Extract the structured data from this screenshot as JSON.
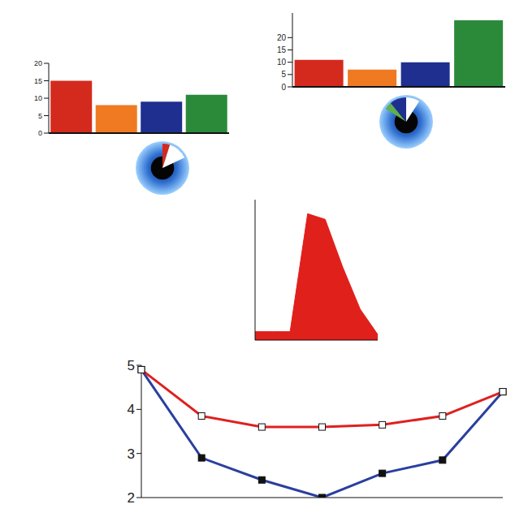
{
  "chart_data": [
    {
      "type": "bar",
      "categories": [
        null,
        null,
        null,
        null
      ],
      "values": [
        15,
        8,
        9,
        11
      ],
      "colors": [
        "#d42a1e",
        "#f07a22",
        "#1f2f8f",
        "#2a8a3a"
      ],
      "ylim": [
        0,
        20
      ],
      "yticks": [
        0,
        5,
        10,
        15,
        20
      ],
      "tick_labels": "y"
    },
    {
      "type": "bar",
      "categories": [
        null,
        null,
        null,
        null
      ],
      "values": [
        11,
        7,
        10,
        27
      ],
      "colors": [
        "#d42a1e",
        "#f07a22",
        "#1f2f8f",
        "#2a8a3a"
      ],
      "ylim": [
        0,
        30
      ],
      "yticks": [
        0,
        5,
        10,
        15,
        20
      ],
      "tick_labels": "y"
    },
    {
      "type": "pie",
      "values": [
        5,
        13,
        82
      ],
      "colors": [
        "#d42a1e",
        "#ffffff",
        "transparent"
      ]
    },
    {
      "type": "pie",
      "values": [
        9,
        75,
        5,
        11
      ],
      "colors": [
        "#ffffff",
        "transparent",
        "#5fb04a",
        "#1f2f8f"
      ]
    },
    {
      "type": "area",
      "categories": [
        null,
        null,
        null,
        null,
        null,
        null,
        null,
        null
      ],
      "values": [
        0.3,
        0.3,
        0.3,
        4.5,
        4.3,
        2.6,
        1.1,
        0.2
      ],
      "color": "#e0201b",
      "ylim": [
        0,
        5
      ],
      "yticks": [
        0,
        1,
        2,
        3,
        4
      ],
      "tick_labels": false
    },
    {
      "type": "line",
      "categories": [
        null,
        null,
        null,
        null,
        null,
        null,
        null
      ],
      "series": [
        {
          "color": "#2a3f9f",
          "marker": "square",
          "values": [
            4.9,
            2.9,
            2.4,
            2.0,
            2.55,
            2.85,
            4.4
          ]
        },
        {
          "color": "#e02020",
          "marker": "square_open",
          "values": [
            4.9,
            3.85,
            3.6,
            3.6,
            3.65,
            3.85,
            4.4
          ]
        }
      ],
      "ylim": [
        2,
        5
      ],
      "yticks": [
        2,
        3,
        4,
        5
      ],
      "tick_labels": "y"
    }
  ]
}
